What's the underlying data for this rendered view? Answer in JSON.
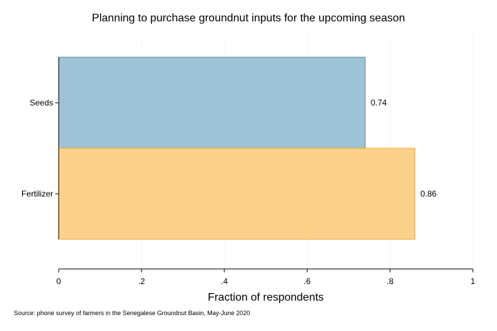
{
  "chart_data": {
    "type": "bar",
    "orientation": "horizontal",
    "title": "Planning to purchase groundnut inputs for the upcoming season",
    "xlabel": "Fraction of respondents",
    "ylabel": "",
    "categories": [
      "Seeds",
      "Fertilizer"
    ],
    "values": [
      0.74,
      0.86
    ],
    "value_labels": [
      "0.74",
      "0.86"
    ],
    "xlim": [
      0,
      1
    ],
    "xticks": [
      0,
      0.2,
      0.4,
      0.6,
      0.8,
      1
    ],
    "xtick_labels": [
      "0",
      ".2",
      ".4",
      ".6",
      ".8",
      "1"
    ],
    "grid": "vertical dotted",
    "legend": "none",
    "colors": [
      "#9dc3d4",
      "#fcd18b"
    ],
    "edge_colors": [
      "#4e8fa8",
      "#f0a830"
    ],
    "note": "Source: phone survey of farmers in the Senegalese Groundnut Basin, May-June 2020"
  }
}
